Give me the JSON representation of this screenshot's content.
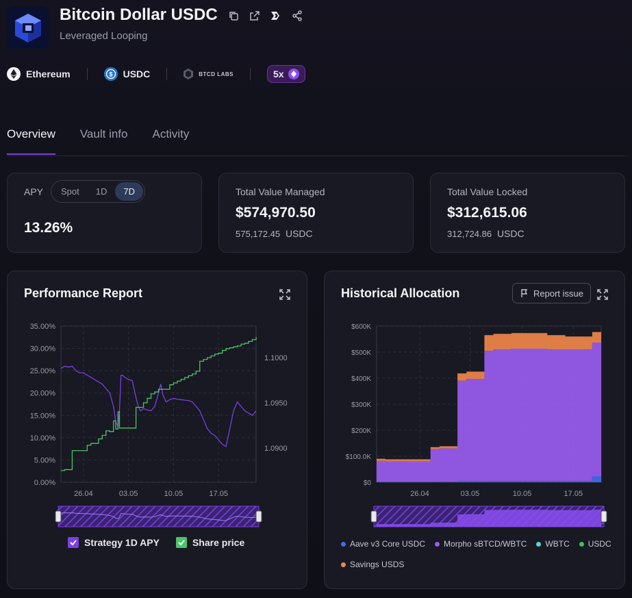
{
  "header": {
    "title": "Bitcoin Dollar USDC",
    "subtitle": "Leveraged Looping",
    "icons": [
      "copy-icon",
      "external-link-icon",
      "brand-logo-icon",
      "share-icon"
    ]
  },
  "meta": {
    "network": "Ethereum",
    "asset": "USDC",
    "curator": "BTCD LABS",
    "leverage": "5x"
  },
  "tabs": [
    {
      "label": "Overview"
    },
    {
      "label": "Vault info"
    },
    {
      "label": "Activity"
    }
  ],
  "apy": {
    "label": "APY",
    "options": [
      "Spot",
      "1D",
      "7D"
    ],
    "selected": "7D",
    "value": "13.26%"
  },
  "tvm": {
    "label": "Total Value Managed",
    "value": "$574,970.50",
    "sub_amount": "575,172.45",
    "sub_unit": "USDC"
  },
  "tvl": {
    "label": "Total Value Locked",
    "value": "$312,615.06",
    "sub_amount": "312,724.86",
    "sub_unit": "USDC"
  },
  "performance": {
    "title": "Performance Report",
    "legend": [
      {
        "name": "Strategy 1D APY",
        "color": "#7b3fe4"
      },
      {
        "name": "Share price",
        "color": "#4cc46a"
      }
    ]
  },
  "allocation": {
    "title": "Historical Allocation",
    "report_label": "Report issue",
    "legend": [
      {
        "name": "Aave v3 Core USDC",
        "color": "#3b6ff0"
      },
      {
        "name": "Morpho sBTCD/WBTC",
        "color": "#9a5cf0"
      },
      {
        "name": "WBTC",
        "color": "#5fd0d8"
      },
      {
        "name": "USDC",
        "color": "#3fbf5a"
      },
      {
        "name": "Savings USDS",
        "color": "#f0864a"
      }
    ]
  },
  "chart_data": [
    {
      "type": "line",
      "title": "Performance Report",
      "x_ticks": [
        "26.04",
        "03.05",
        "10.05",
        "17.05"
      ],
      "y_left_ticks": [
        "35.00%",
        "30.00%",
        "25.00%",
        "20.00%",
        "15.00%",
        "10.00%",
        "5.00%",
        "0.00%"
      ],
      "y_right_ticks": [
        "1.1000",
        "1.0950",
        "1.0900"
      ],
      "ylim_left": [
        0,
        35
      ],
      "ylim_right": [
        1.0862,
        1.1035
      ],
      "grid": true,
      "series": [
        {
          "name": "Strategy 1D APY",
          "axis": "left",
          "x": [
            0,
            0.5,
            1.0,
            1.5,
            2.0,
            2.5,
            3.0,
            3.5,
            4.0,
            4.5,
            5.0,
            5.5,
            6.0,
            6.5,
            7.0,
            7.3,
            7.6,
            7.8,
            8.0,
            8.2,
            8.5,
            9.0,
            9.5,
            10.0,
            10.3,
            10.6,
            11.0,
            11.5,
            12.0,
            12.5,
            13.0,
            13.3,
            13.6,
            14.0,
            14.5,
            15.0,
            15.5,
            16.0,
            16.5,
            17.0,
            17.5,
            18.0,
            18.5,
            19.0,
            19.5,
            20.0,
            20.5,
            21.0,
            21.5,
            22.0,
            22.5,
            23.0,
            23.5,
            24.0,
            24.5,
            25.0,
            25.5,
            26.0
          ],
          "values": [
            25.5,
            26,
            25.8,
            26,
            25,
            24.5,
            24.5,
            24,
            23.5,
            23,
            22.5,
            22,
            21,
            20,
            17,
            13.5,
            12.5,
            16,
            24,
            24,
            23.5,
            23,
            22.8,
            19,
            17,
            16,
            16.5,
            16.2,
            16,
            17,
            20,
            22,
            19.5,
            18,
            18.5,
            18.8,
            18.6,
            18.5,
            18.4,
            18.3,
            18,
            17,
            16,
            14,
            12,
            11,
            10.5,
            9.5,
            8.5,
            8,
            12,
            16,
            18,
            17,
            16,
            15.5,
            15,
            16
          ],
          "color": "#7b3fe4"
        },
        {
          "name": "Share price",
          "axis": "right",
          "x": [
            0,
            0.5,
            1.0,
            1.5,
            2.0,
            2.5,
            3.0,
            3.5,
            4.0,
            4.5,
            5.0,
            5.5,
            6.0,
            6.5,
            7.0,
            7.3,
            7.6,
            7.8,
            8.0,
            8.2,
            8.5,
            9.0,
            9.5,
            10.0,
            10.3,
            10.6,
            11.0,
            11.5,
            12.0,
            12.5,
            13.0,
            13.3,
            13.6,
            14.0,
            14.5,
            15.0,
            15.5,
            16.0,
            16.5,
            17.0,
            17.5,
            18.0,
            18.5,
            19.0,
            19.5,
            20.0,
            20.5,
            21.0,
            21.5,
            22.0,
            22.5,
            23.0,
            23.5,
            24.0,
            24.5,
            25.0,
            25.5,
            26.0
          ],
          "values": [
            1.0875,
            1.0876,
            1.0876,
            1.0897,
            1.0897,
            1.0897,
            1.0897,
            1.0903,
            1.0905,
            1.0905,
            1.091,
            1.0914,
            1.0919,
            1.0918,
            1.093,
            1.0921,
            1.094,
            1.0922,
            1.0922,
            1.0922,
            1.0922,
            1.0922,
            1.0922,
            1.0945,
            1.0945,
            1.0945,
            1.095,
            1.0955,
            1.096,
            1.0962,
            1.0965,
            1.0965,
            1.0965,
            1.0965,
            1.097,
            1.0972,
            1.0974,
            1.0976,
            1.0978,
            1.098,
            1.0982,
            1.0985,
            1.0996,
            1.0998,
            1.1,
            1.1002,
            1.1004,
            1.1005,
            1.1008,
            1.101,
            1.1011,
            1.1012,
            1.1013,
            1.1015,
            1.1016,
            1.1018,
            1.102,
            1.1023
          ],
          "color": "#4cc46a"
        }
      ]
    },
    {
      "type": "area",
      "title": "Historical Allocation",
      "x_ticks": [
        "26.04",
        "03.05",
        "10.05",
        "17.05"
      ],
      "y_ticks": [
        "$600K",
        "$500K",
        "$400K",
        "$300K",
        "$200K",
        "$100.0K",
        "$0"
      ],
      "ylim": [
        0,
        600
      ],
      "grid": true,
      "x": [
        0,
        1,
        2,
        3,
        4,
        5,
        6,
        7,
        8,
        9,
        10,
        11,
        12,
        13,
        14,
        15,
        16,
        17,
        18,
        19,
        20,
        21,
        22,
        23,
        24,
        25
      ],
      "series": [
        {
          "name": "Aave v3 Core USDC",
          "values": [
            2,
            2,
            2,
            2,
            2,
            2,
            2,
            2,
            2,
            5,
            5,
            5,
            5,
            5,
            5,
            5,
            5,
            5,
            5,
            5,
            5,
            5,
            5,
            5,
            22,
            22
          ],
          "color": "#3b6ff0"
        },
        {
          "name": "Morpho sBTCD/WBTC",
          "values": [
            80,
            78,
            78,
            78,
            78,
            78,
            125,
            128,
            128,
            385,
            392,
            392,
            500,
            505,
            505,
            508,
            508,
            508,
            508,
            505,
            505,
            505,
            505,
            505,
            515,
            515
          ],
          "color": "#9a5cf0"
        },
        {
          "name": "WBTC",
          "values": [
            0,
            0,
            0,
            0,
            0,
            0,
            0,
            0,
            0,
            0,
            0,
            0,
            0,
            0,
            0,
            0,
            0,
            0,
            0,
            0,
            0,
            0,
            0,
            0,
            0,
            0
          ],
          "color": "#5fd0d8"
        },
        {
          "name": "USDC",
          "values": [
            0,
            0,
            0,
            0,
            0,
            0,
            0,
            0,
            0,
            0,
            0,
            0,
            0,
            0,
            0,
            0,
            0,
            0,
            0,
            0,
            0,
            0,
            0,
            0,
            0,
            0
          ],
          "color": "#3fbf5a"
        },
        {
          "name": "Savings USDS",
          "values": [
            8,
            8,
            8,
            8,
            8,
            8,
            8,
            8,
            8,
            28,
            28,
            28,
            60,
            60,
            60,
            60,
            60,
            60,
            60,
            55,
            55,
            50,
            50,
            50,
            40,
            38
          ],
          "color": "#f0864a"
        }
      ]
    }
  ]
}
